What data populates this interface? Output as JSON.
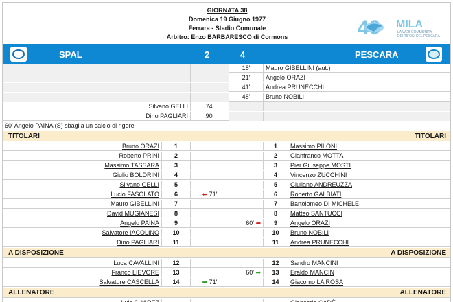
{
  "header": {
    "giornata": "GIORNATA 38",
    "date": "Domenica 19 Giugno 1977",
    "venue": "Ferrara - Stadio Comunale",
    "referee_prefix": "Arbitro: ",
    "referee_name": "Enzo BARBARESCO",
    "referee_suffix": " di Cormons"
  },
  "logo": {
    "big": "40",
    "mila": "MILA",
    "tagline1": "LA WEB COMMUNITY",
    "tagline2": "DEI TIFOSI DEL PESCARA"
  },
  "teams": {
    "home": "SPAL",
    "away": "PESCARA",
    "home_score": "2",
    "away_score": "4"
  },
  "away_goals": [
    {
      "minute": "18'",
      "scorer": "Mauro GIBELLINI (aut.)"
    },
    {
      "minute": "21'",
      "scorer": "Angelo ORAZI"
    },
    {
      "minute": "41'",
      "scorer": "Andrea PRUNECCHI"
    },
    {
      "minute": "48'",
      "scorer": "Bruno NOBILI"
    }
  ],
  "home_goals": [
    {
      "scorer": "Silvano GELLI",
      "minute": "74'"
    },
    {
      "scorer": "Dino PAGLIARI",
      "minute": "90'"
    }
  ],
  "note": "60'  Angelo PAINA (S) sbaglia un calcio di rigore",
  "sections": {
    "starters": "TITOLARI",
    "bench": "A DISPOSIZIONE",
    "coach": "ALLENATORE"
  },
  "home_starters": [
    {
      "name": "Bruno ORAZI",
      "num": "1",
      "sub": ""
    },
    {
      "name": "Roberto PRINI",
      "num": "2",
      "sub": ""
    },
    {
      "name": "Massimo TASSARA",
      "num": "3",
      "sub": ""
    },
    {
      "name": "Giulio BOLDRINI",
      "num": "4",
      "sub": ""
    },
    {
      "name": "Silvano GELLI",
      "num": "5",
      "sub": ""
    },
    {
      "name": "Lucio FASOLATO",
      "num": "6",
      "sub": "71'"
    },
    {
      "name": "Mauro GIBELLINI",
      "num": "7",
      "sub": ""
    },
    {
      "name": "David MUGIANESI",
      "num": "8",
      "sub": ""
    },
    {
      "name": "Angelo PAINA",
      "num": "9",
      "sub": ""
    },
    {
      "name": "Salvatore IACOLINO",
      "num": "10",
      "sub": ""
    },
    {
      "name": "Dino PAGLIARI",
      "num": "11",
      "sub": ""
    }
  ],
  "away_starters": [
    {
      "name": "Massimo PILONI",
      "num": "1",
      "sub": ""
    },
    {
      "name": "Gianfranco MOTTA",
      "num": "2",
      "sub": ""
    },
    {
      "name": "Pier Giuseppe MOSTI",
      "num": "3",
      "sub": ""
    },
    {
      "name": "Vincenzo ZUCCHINI",
      "num": "4",
      "sub": ""
    },
    {
      "name": "Giuliano ANDREUZZA",
      "num": "5",
      "sub": ""
    },
    {
      "name": "Roberto GALBIATI",
      "num": "6",
      "sub": ""
    },
    {
      "name": "Bartolomeo DI MICHELE",
      "num": "7",
      "sub": ""
    },
    {
      "name": "Matteo SANTUCCI",
      "num": "8",
      "sub": ""
    },
    {
      "name": "Angelo ORAZI",
      "num": "9",
      "sub": "60'"
    },
    {
      "name": "Bruno NOBILI",
      "num": "10",
      "sub": ""
    },
    {
      "name": "Andrea PRUNECCHI",
      "num": "11",
      "sub": ""
    }
  ],
  "home_bench": [
    {
      "name": "Luca CAVALLINI",
      "num": "12",
      "sub": ""
    },
    {
      "name": "Franco LIEVORE",
      "num": "13",
      "sub": ""
    },
    {
      "name": "Salvatore CASCELLA",
      "num": "14",
      "sub": "71'"
    }
  ],
  "away_bench": [
    {
      "name": "Sandro MANCINI",
      "num": "12",
      "sub": ""
    },
    {
      "name": "Eraldo MANCIN",
      "num": "13",
      "sub": "60'"
    },
    {
      "name": "Giacomo LA ROSA",
      "num": "14",
      "sub": ""
    }
  ],
  "coaches": {
    "home": "Luis SUAREZ",
    "away": "Giancarlo CADÈ"
  },
  "icons": {
    "sub_out": "red-left-arrow",
    "sub_in": "green-right-arrow"
  },
  "colors": {
    "team_bar": "#0f88d4",
    "section_bg": "#fbeccc",
    "sub_out": "#d01f1f",
    "sub_in": "#2e9e2e"
  }
}
